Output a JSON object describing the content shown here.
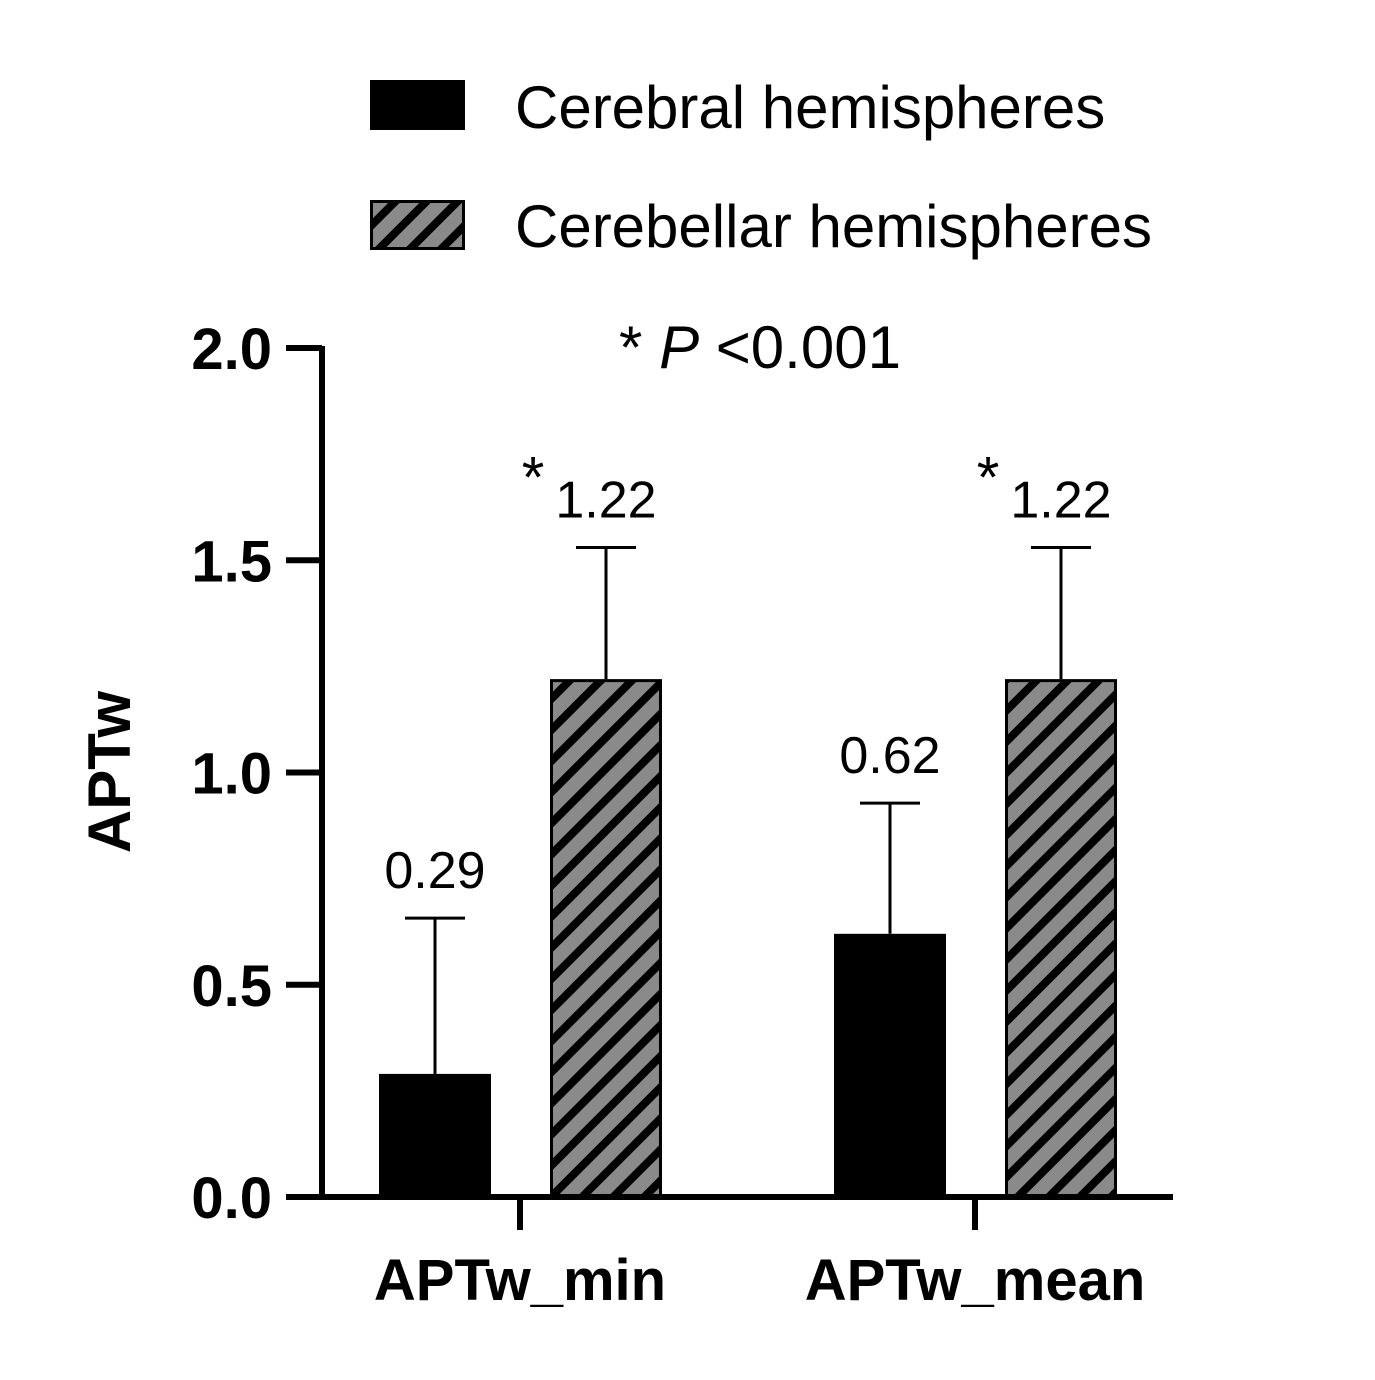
{
  "chart_data": {
    "type": "bar",
    "categories": [
      "APTw_min",
      "APTw_mean"
    ],
    "series": [
      {
        "name": "Cerebral hemispheres",
        "values": [
          0.29,
          0.62
        ],
        "error_upper": [
          0.657,
          0.928
        ],
        "value_labels": [
          "0.29",
          "0.62"
        ],
        "significance": [
          "",
          ""
        ],
        "fill": "#000000",
        "pattern": "solid"
      },
      {
        "name": "Cerebellar hemispheres",
        "values": [
          1.22,
          1.22
        ],
        "error_upper": [
          1.53,
          1.53
        ],
        "value_labels": [
          "1.22",
          "1.22"
        ],
        "significance": [
          "*",
          "*"
        ],
        "fill": "#8a8a8a",
        "pattern": "diagonal-hatch"
      }
    ],
    "annotation": {
      "star": "*",
      "p": "P",
      "rest": "<0.001"
    },
    "ylabel": "APTw",
    "xlabel": "",
    "ylim": [
      0,
      2.0
    ],
    "yticks": [
      "0.0",
      "0.5",
      "1.0",
      "1.5",
      "2.0"
    ],
    "ytick_values": [
      0,
      0.5,
      1.0,
      1.5,
      2.0
    ],
    "grid": false,
    "legend_position": "top"
  }
}
